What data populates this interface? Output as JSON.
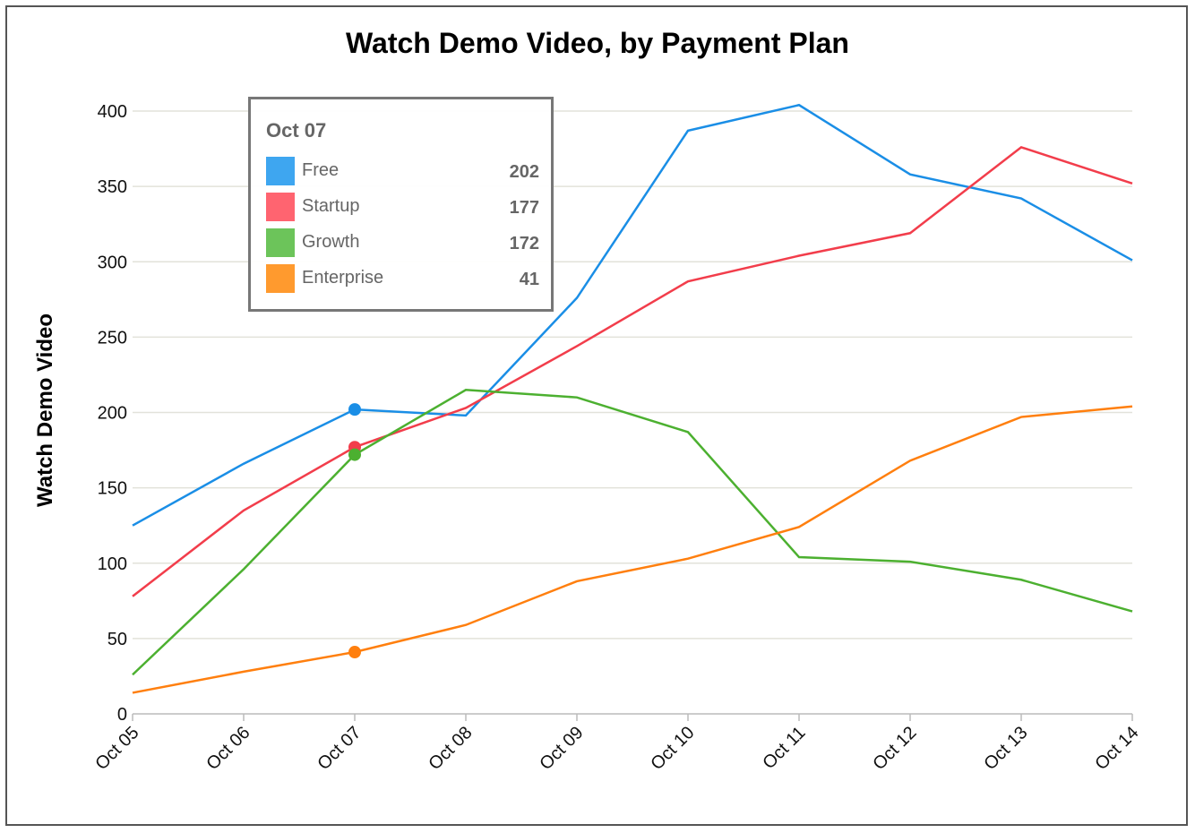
{
  "chart_data": {
    "type": "line",
    "title": "Watch Demo Video, by Payment Plan",
    "xlabel": "",
    "ylabel": "Watch Demo Video",
    "ylim": [
      0,
      400
    ],
    "yticks": [
      0,
      50,
      100,
      150,
      200,
      250,
      300,
      350,
      400
    ],
    "grid": true,
    "categories": [
      "Oct 05",
      "Oct 06",
      "Oct 07",
      "Oct 08",
      "Oct 09",
      "Oct 10",
      "Oct 11",
      "Oct 12",
      "Oct 13",
      "Oct 14"
    ],
    "series": [
      {
        "name": "Free",
        "color": "#1a8ee6",
        "values": [
          125,
          166,
          202,
          198,
          276,
          387,
          404,
          358,
          342,
          301
        ]
      },
      {
        "name": "Startup",
        "color": "#f23d4b",
        "values": [
          78,
          135,
          177,
          203,
          244,
          287,
          304,
          319,
          376,
          352
        ]
      },
      {
        "name": "Growth",
        "color": "#4cb030",
        "values": [
          26,
          96,
          172,
          215,
          210,
          187,
          104,
          101,
          89,
          68
        ]
      },
      {
        "name": "Enterprise",
        "color": "#ff7f0e",
        "values": [
          14,
          28,
          41,
          59,
          88,
          103,
          124,
          168,
          197,
          204
        ]
      }
    ],
    "highlight_index": 2
  },
  "tooltip": {
    "title": "Oct 07",
    "rows": [
      {
        "label": "Free",
        "value": "202",
        "color": "#3ea6f0"
      },
      {
        "label": "Startup",
        "value": "177",
        "color": "#ff6470"
      },
      {
        "label": "Growth",
        "value": "172",
        "color": "#6cc45a"
      },
      {
        "label": "Enterprise",
        "value": "41",
        "color": "#ff9a2e"
      }
    ]
  }
}
